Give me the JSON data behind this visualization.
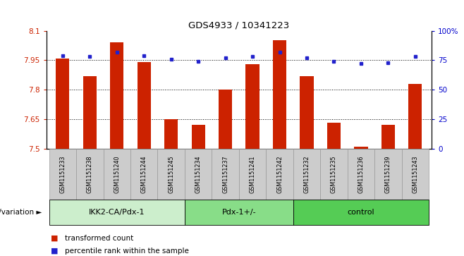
{
  "title": "GDS4933 / 10341223",
  "samples": [
    "GSM1151233",
    "GSM1151238",
    "GSM1151240",
    "GSM1151244",
    "GSM1151245",
    "GSM1151234",
    "GSM1151237",
    "GSM1151241",
    "GSM1151242",
    "GSM1151232",
    "GSM1151235",
    "GSM1151236",
    "GSM1151239",
    "GSM1151243"
  ],
  "red_values": [
    7.96,
    7.87,
    8.04,
    7.94,
    7.65,
    7.62,
    7.8,
    7.93,
    8.05,
    7.87,
    7.63,
    7.51,
    7.62,
    7.83
  ],
  "blue_values": [
    79,
    78,
    82,
    79,
    76,
    74,
    77,
    78,
    82,
    77,
    74,
    72,
    73,
    78
  ],
  "groups": [
    {
      "label": "IKK2-CA/Pdx-1",
      "start": 0,
      "end": 5,
      "color": "#cceecc"
    },
    {
      "label": "Pdx-1+/-",
      "start": 5,
      "end": 9,
      "color": "#88dd88"
    },
    {
      "label": "control",
      "start": 9,
      "end": 14,
      "color": "#55cc55"
    }
  ],
  "ylim_left": [
    7.5,
    8.1
  ],
  "ylim_right": [
    0,
    100
  ],
  "yticks_left": [
    7.5,
    7.65,
    7.8,
    7.95,
    8.1
  ],
  "yticks_right": [
    0,
    25,
    50,
    75,
    100
  ],
  "ytick_labels_left": [
    "7.5",
    "7.65",
    "7.8",
    "7.95",
    "8.1"
  ],
  "ytick_labels_right": [
    "0",
    "25",
    "50",
    "75",
    "100%"
  ],
  "hlines": [
    7.65,
    7.8,
    7.95
  ],
  "bar_color": "#cc2200",
  "dot_color": "#2222cc",
  "bar_width": 0.5,
  "genotype_label": "genotype/variation",
  "legend_red": "transformed count",
  "legend_blue": "percentile rank within the sample",
  "bar_bottom": 7.5,
  "right_axis_color": "#0000cc",
  "left_axis_color": "#cc2200",
  "sample_box_color": "#cccccc",
  "sample_box_edge": "#999999"
}
